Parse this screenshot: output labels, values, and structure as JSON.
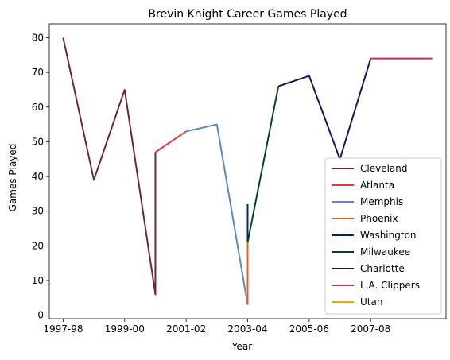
{
  "chart_data": {
    "type": "line",
    "title": "Brevin Knight Career Games Played",
    "xlabel": "Year",
    "ylabel": "Games Played",
    "x_tick_labels": [
      "1997-98",
      "1999-00",
      "2001-02",
      "2003-04",
      "2005-06",
      "2007-08"
    ],
    "y_ticks": [
      0,
      10,
      20,
      30,
      40,
      50,
      60,
      70,
      80
    ],
    "ylim": [
      -1,
      84
    ],
    "xlim": [
      1996.55,
      2009.45
    ],
    "legend_position": "lower-right",
    "grid": false,
    "series": [
      {
        "name": "Cleveland",
        "color": "#6f263d",
        "points": [
          {
            "x": 1997,
            "y": 80
          },
          {
            "x": 1998,
            "y": 39
          },
          {
            "x": 1999,
            "y": 65
          },
          {
            "x": 2000,
            "y": 6
          },
          {
            "x": 2000,
            "y": 47
          }
        ]
      },
      {
        "name": "Atlanta",
        "color": "#e03a3e",
        "points": [
          {
            "x": 2000,
            "y": 47
          },
          {
            "x": 2001,
            "y": 53
          }
        ]
      },
      {
        "name": "Memphis",
        "color": "#5d89bb",
        "points": [
          {
            "x": 2001,
            "y": 53
          },
          {
            "x": 2002,
            "y": 55
          },
          {
            "x": 2003,
            "y": 3
          }
        ]
      },
      {
        "name": "Phoenix",
        "color": "#e56020",
        "points": [
          {
            "x": 2003,
            "y": 3
          },
          {
            "x": 2003,
            "y": 21
          }
        ]
      },
      {
        "name": "Washington",
        "color": "#002b5c",
        "points": [
          {
            "x": 2003,
            "y": 21
          },
          {
            "x": 2003,
            "y": 32
          }
        ]
      },
      {
        "name": "Milwaukee",
        "color": "#00471b",
        "points": [
          {
            "x": 2003,
            "y": 21
          },
          {
            "x": 2004,
            "y": 66
          }
        ]
      },
      {
        "name": "Charlotte",
        "color": "#1d1160",
        "points": [
          {
            "x": 2004,
            "y": 66
          },
          {
            "x": 2005,
            "y": 69
          },
          {
            "x": 2006,
            "y": 45
          },
          {
            "x": 2007,
            "y": 74
          }
        ]
      },
      {
        "name": "L.A. Clippers",
        "color": "#e0224d",
        "points": [
          {
            "x": 2007,
            "y": 74
          },
          {
            "x": 2008,
            "y": 74
          },
          {
            "x": 2009,
            "y": 74
          }
        ]
      },
      {
        "name": "Utah",
        "color": "#f9a01b",
        "points": []
      }
    ]
  }
}
